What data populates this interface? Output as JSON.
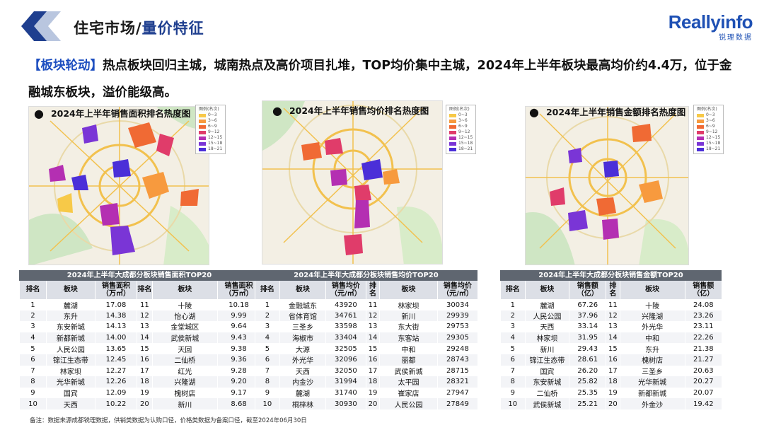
{
  "header": {
    "title_part1": "住宅市场/",
    "title_part2": "量价特征",
    "brand_name": "Reallyinfo",
    "brand_sub": "锐理数据"
  },
  "headline": {
    "tag": "【板块轮动】",
    "text": "热点板块回归主城，城南热点及高价项目扎堆，TOP均价集中主城，2024年上半年板块最高均价约4.4万，位于金融城东板块，溢价能级高。"
  },
  "legend": {
    "title": "图例(名次)",
    "ranges": [
      "0~3",
      "3~6",
      "6~9",
      "9~12",
      "12~15",
      "15~18",
      "18~21"
    ],
    "colors": [
      "#f7c948",
      "#f79a3e",
      "#f06a34",
      "#e03c6a",
      "#b42fb2",
      "#7a35d6",
      "#4b2fd8"
    ]
  },
  "maps": [
    {
      "title": "2024年上半年销售面积排名热度图"
    },
    {
      "title": "2024年上半年销售均价排名热度图"
    },
    {
      "title": "2024年上半年销售金额排名热度图"
    }
  ],
  "tables": [
    {
      "caption": "2024年上半年大成都分板块销售面积TOP20",
      "headers": [
        "排名",
        "板块",
        "销售面积\n（万㎡）",
        "排名",
        "板块",
        "销售面积\n（万㎡）"
      ],
      "rows": [
        [
          "1",
          "麓湖",
          "17.08",
          "11",
          "十陵",
          "10.18"
        ],
        [
          "2",
          "东升",
          "14.38",
          "12",
          "怡心湖",
          "9.99"
        ],
        [
          "3",
          "东安新城",
          "14.13",
          "13",
          "金堂城区",
          "9.64"
        ],
        [
          "4",
          "新都新城",
          "14.00",
          "14",
          "武侯新城",
          "9.43"
        ],
        [
          "5",
          "人民公园",
          "13.65",
          "15",
          "天回",
          "9.38"
        ],
        [
          "6",
          "锦江生态带",
          "12.45",
          "16",
          "二仙桥",
          "9.36"
        ],
        [
          "7",
          "林家坝",
          "12.27",
          "17",
          "红光",
          "9.28"
        ],
        [
          "8",
          "光华新城",
          "12.26",
          "18",
          "兴隆湖",
          "9.20"
        ],
        [
          "9",
          "国宾",
          "12.09",
          "19",
          "槐树店",
          "9.17"
        ],
        [
          "10",
          "天西",
          "10.22",
          "20",
          "新川",
          "8.68"
        ]
      ]
    },
    {
      "caption": "2024年上半年大成都分板块销售均价TOP20",
      "headers": [
        "排名",
        "板块",
        "销售均价\n（元/㎡）",
        "排名",
        "板块",
        "销售均价\n（元/㎡）"
      ],
      "rows": [
        [
          "1",
          "金融城东",
          "43920",
          "11",
          "林家坝",
          "30034"
        ],
        [
          "2",
          "省体育馆",
          "34761",
          "12",
          "新川",
          "29939"
        ],
        [
          "3",
          "三圣乡",
          "33598",
          "13",
          "东大街",
          "29753"
        ],
        [
          "4",
          "海椒市",
          "33404",
          "14",
          "东客站",
          "29305"
        ],
        [
          "5",
          "大源",
          "32505",
          "15",
          "中和",
          "29248"
        ],
        [
          "6",
          "外光华",
          "32096",
          "16",
          "丽都",
          "28743"
        ],
        [
          "7",
          "天西",
          "32050",
          "17",
          "武侯新城",
          "28715"
        ],
        [
          "8",
          "内金沙",
          "31994",
          "18",
          "太平园",
          "28321"
        ],
        [
          "9",
          "麓湖",
          "31740",
          "19",
          "崔家店",
          "27947"
        ],
        [
          "10",
          "桐梓林",
          "30930",
          "20",
          "人民公园",
          "27849"
        ]
      ]
    },
    {
      "caption": "2024年上半年大成都分板块销售金额TOP20",
      "headers": [
        "排名",
        "板块",
        "销售额\n（亿）",
        "排名",
        "板块",
        "销售额\n（亿）"
      ],
      "rows": [
        [
          "1",
          "麓湖",
          "67.26",
          "11",
          "十陵",
          "24.08"
        ],
        [
          "2",
          "人民公园",
          "37.96",
          "12",
          "兴隆湖",
          "23.26"
        ],
        [
          "3",
          "天西",
          "33.14",
          "13",
          "外光华",
          "23.11"
        ],
        [
          "4",
          "林家坝",
          "31.95",
          "14",
          "中和",
          "22.26"
        ],
        [
          "5",
          "新川",
          "29.43",
          "15",
          "东升",
          "21.38"
        ],
        [
          "6",
          "锦江生态带",
          "28.61",
          "16",
          "槐树店",
          "21.27"
        ],
        [
          "7",
          "国宾",
          "26.20",
          "17",
          "三圣乡",
          "20.63"
        ],
        [
          "8",
          "东安新城",
          "25.82",
          "18",
          "光华新城",
          "20.27"
        ],
        [
          "9",
          "二仙桥",
          "25.35",
          "19",
          "新都新城",
          "20.07"
        ],
        [
          "10",
          "武侯新城",
          "25.21",
          "20",
          "外金沙",
          "19.42"
        ]
      ]
    }
  ],
  "footnote": "备注：数据来源成都锐理数据，供销类数据为认购口径，价格类数据为备案口径，截至2024年06月30日"
}
